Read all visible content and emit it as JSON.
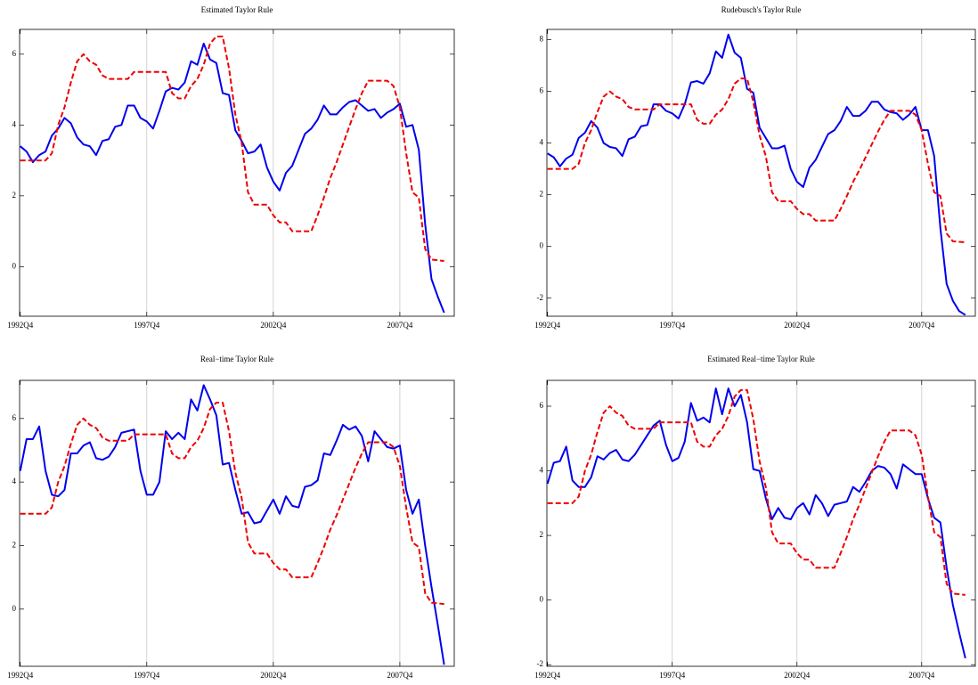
{
  "chart_data": [
    {
      "type": "line",
      "title": "Estimated Taylor Rule",
      "categories": [
        "1992Q4",
        null,
        null,
        null,
        null,
        null,
        null,
        null,
        null,
        null,
        null,
        null,
        null,
        null,
        null,
        null,
        null,
        null,
        null,
        null,
        "1997Q4",
        null,
        null,
        null,
        null,
        null,
        null,
        null,
        null,
        null,
        null,
        null,
        null,
        null,
        null,
        null,
        null,
        null,
        null,
        null,
        "2002Q4",
        null,
        null,
        null,
        null,
        null,
        null,
        null,
        null,
        null,
        null,
        null,
        null,
        null,
        null,
        null,
        null,
        null,
        null,
        null,
        "2007Q4",
        null,
        null,
        null,
        null,
        null,
        null,
        null
      ],
      "ylim": [
        -1.4,
        6.7
      ],
      "yticks": [
        0,
        2,
        4,
        6
      ],
      "xgrid": true,
      "series": [
        {
          "color": "#0000ee",
          "dashed": false,
          "values": [
            3.4,
            3.25,
            2.95,
            3.15,
            3.25,
            3.7,
            3.9,
            4.2,
            4.05,
            3.65,
            3.45,
            3.4,
            3.15,
            3.55,
            3.6,
            3.95,
            4.0,
            4.55,
            4.55,
            4.2,
            4.1,
            3.9,
            4.4,
            4.95,
            5.05,
            5.0,
            5.2,
            5.8,
            5.7,
            6.3,
            5.85,
            5.75,
            4.9,
            4.85,
            3.85,
            3.55,
            3.2,
            3.25,
            3.45,
            2.8,
            2.4,
            2.15,
            2.65,
            2.85,
            3.3,
            3.75,
            3.9,
            4.15,
            4.55,
            4.3,
            4.3,
            4.5,
            4.65,
            4.7,
            4.55,
            4.4,
            4.45,
            4.2,
            4.35,
            4.45,
            4.6,
            3.95,
            4.0,
            3.3,
            1.2,
            -0.35,
            -0.85,
            -1.3
          ]
        },
        {
          "color": "#ee0000",
          "dashed": true,
          "values": [
            3.0,
            3.0,
            3.0,
            3.0,
            3.0,
            3.2,
            4.0,
            4.5,
            5.2,
            5.8,
            6.0,
            5.8,
            5.7,
            5.4,
            5.3,
            5.3,
            5.3,
            5.3,
            5.5,
            5.5,
            5.5,
            5.5,
            5.5,
            5.5,
            4.9,
            4.75,
            4.75,
            5.1,
            5.3,
            5.7,
            6.3,
            6.5,
            6.5,
            5.6,
            4.3,
            3.5,
            2.1,
            1.75,
            1.75,
            1.75,
            1.45,
            1.25,
            1.25,
            1.0,
            1.0,
            1.0,
            1.0,
            1.45,
            1.95,
            2.5,
            2.95,
            3.45,
            3.95,
            4.45,
            4.9,
            5.25,
            5.25,
            5.25,
            5.25,
            5.1,
            4.5,
            3.2,
            2.1,
            1.95,
            0.5,
            0.2,
            0.18,
            0.16
          ]
        }
      ]
    },
    {
      "type": "line",
      "title": "Rudebusch's Taylor Rule",
      "categories": [
        "1992Q4",
        null,
        null,
        null,
        null,
        null,
        null,
        null,
        null,
        null,
        null,
        null,
        null,
        null,
        null,
        null,
        null,
        null,
        null,
        null,
        "1997Q4",
        null,
        null,
        null,
        null,
        null,
        null,
        null,
        null,
        null,
        null,
        null,
        null,
        null,
        null,
        null,
        null,
        null,
        null,
        null,
        "2002Q4",
        null,
        null,
        null,
        null,
        null,
        null,
        null,
        null,
        null,
        null,
        null,
        null,
        null,
        null,
        null,
        null,
        null,
        null,
        null,
        "2007Q4",
        null,
        null,
        null,
        null,
        null,
        null,
        null
      ],
      "ylim": [
        -2.7,
        8.4
      ],
      "yticks": [
        -2,
        0,
        2,
        4,
        6,
        8
      ],
      "xgrid": true,
      "series": [
        {
          "color": "#0000ee",
          "dashed": false,
          "values": [
            3.6,
            3.45,
            3.1,
            3.4,
            3.55,
            4.2,
            4.4,
            4.85,
            4.6,
            4.0,
            3.85,
            3.8,
            3.5,
            4.15,
            4.25,
            4.65,
            4.7,
            5.5,
            5.5,
            5.25,
            5.15,
            4.95,
            5.5,
            6.35,
            6.4,
            6.3,
            6.7,
            7.55,
            7.3,
            8.2,
            7.5,
            7.3,
            6.1,
            5.95,
            4.6,
            4.2,
            3.8,
            3.8,
            3.9,
            3.0,
            2.5,
            2.3,
            3.05,
            3.35,
            3.85,
            4.35,
            4.5,
            4.85,
            5.4,
            5.05,
            5.05,
            5.25,
            5.6,
            5.6,
            5.3,
            5.2,
            5.15,
            4.9,
            5.1,
            5.4,
            4.5,
            4.5,
            3.5,
            0.7,
            -1.45,
            -2.1,
            -2.5,
            -2.65
          ]
        },
        {
          "color": "#ee0000",
          "dashed": true,
          "values": [
            3.0,
            3.0,
            3.0,
            3.0,
            3.0,
            3.2,
            4.0,
            4.5,
            5.2,
            5.8,
            6.0,
            5.8,
            5.7,
            5.4,
            5.3,
            5.3,
            5.3,
            5.3,
            5.5,
            5.5,
            5.5,
            5.5,
            5.5,
            5.5,
            4.9,
            4.75,
            4.75,
            5.1,
            5.3,
            5.7,
            6.3,
            6.5,
            6.5,
            5.6,
            4.3,
            3.5,
            2.1,
            1.75,
            1.75,
            1.75,
            1.45,
            1.25,
            1.25,
            1.0,
            1.0,
            1.0,
            1.0,
            1.45,
            1.95,
            2.5,
            2.95,
            3.45,
            3.95,
            4.45,
            4.9,
            5.25,
            5.25,
            5.25,
            5.25,
            5.1,
            4.5,
            3.2,
            2.1,
            1.95,
            0.5,
            0.2,
            0.18,
            0.16
          ]
        }
      ]
    },
    {
      "type": "line",
      "title": "Real−time Taylor Rule",
      "categories": [
        "1992Q4",
        null,
        null,
        null,
        null,
        null,
        null,
        null,
        null,
        null,
        null,
        null,
        null,
        null,
        null,
        null,
        null,
        null,
        null,
        null,
        "1997Q4",
        null,
        null,
        null,
        null,
        null,
        null,
        null,
        null,
        null,
        null,
        null,
        null,
        null,
        null,
        null,
        null,
        null,
        null,
        null,
        "2002Q4",
        null,
        null,
        null,
        null,
        null,
        null,
        null,
        null,
        null,
        null,
        null,
        null,
        null,
        null,
        null,
        null,
        null,
        null,
        null,
        "2007Q4",
        null,
        null,
        null,
        null,
        null,
        null,
        null
      ],
      "ylim": [
        -1.8,
        7.2
      ],
      "yticks": [
        0,
        2,
        4,
        6
      ],
      "xgrid": true,
      "series": [
        {
          "color": "#0000ee",
          "dashed": false,
          "values": [
            4.35,
            5.35,
            5.35,
            5.75,
            4.35,
            3.6,
            3.55,
            3.75,
            4.9,
            4.9,
            5.15,
            5.25,
            4.75,
            4.7,
            4.8,
            5.1,
            5.55,
            5.6,
            5.65,
            4.35,
            3.6,
            3.6,
            4.0,
            5.6,
            5.35,
            5.55,
            5.35,
            6.6,
            6.25,
            7.05,
            6.6,
            6.1,
            4.55,
            4.6,
            3.75,
            3.0,
            3.05,
            2.7,
            2.75,
            3.1,
            3.45,
            3.0,
            3.55,
            3.25,
            3.2,
            3.85,
            3.9,
            4.05,
            4.9,
            4.85,
            5.3,
            5.8,
            5.65,
            5.75,
            5.45,
            4.65,
            5.6,
            5.35,
            5.1,
            5.05,
            5.15,
            3.75,
            3.0,
            3.45,
            2.0,
            0.7,
            -0.5,
            -1.75
          ]
        },
        {
          "color": "#ee0000",
          "dashed": true,
          "values": [
            3.0,
            3.0,
            3.0,
            3.0,
            3.0,
            3.2,
            4.0,
            4.5,
            5.2,
            5.8,
            6.0,
            5.8,
            5.7,
            5.4,
            5.3,
            5.3,
            5.3,
            5.3,
            5.5,
            5.5,
            5.5,
            5.5,
            5.5,
            5.5,
            4.9,
            4.75,
            4.75,
            5.1,
            5.3,
            5.7,
            6.3,
            6.5,
            6.5,
            5.6,
            4.3,
            3.5,
            2.1,
            1.75,
            1.75,
            1.75,
            1.45,
            1.25,
            1.25,
            1.0,
            1.0,
            1.0,
            1.0,
            1.45,
            1.95,
            2.5,
            2.95,
            3.45,
            3.95,
            4.45,
            4.9,
            5.25,
            5.25,
            5.25,
            5.25,
            5.1,
            4.5,
            3.2,
            2.1,
            1.95,
            0.5,
            0.2,
            0.18,
            0.16
          ]
        }
      ]
    },
    {
      "type": "line",
      "title": "Estimated Real−time Taylor Rule",
      "categories": [
        "1992Q4",
        null,
        null,
        null,
        null,
        null,
        null,
        null,
        null,
        null,
        null,
        null,
        null,
        null,
        null,
        null,
        null,
        null,
        null,
        null,
        "1997Q4",
        null,
        null,
        null,
        null,
        null,
        null,
        null,
        null,
        null,
        null,
        null,
        null,
        null,
        null,
        null,
        null,
        null,
        null,
        null,
        "2002Q4",
        null,
        null,
        null,
        null,
        null,
        null,
        null,
        null,
        null,
        null,
        null,
        null,
        null,
        null,
        null,
        null,
        null,
        null,
        null,
        "2007Q4",
        null,
        null,
        null,
        null,
        null,
        null,
        null
      ],
      "ylim": [
        -2.05,
        6.8
      ],
      "yticks": [
        -2,
        0,
        2,
        4,
        6
      ],
      "xgrid": true,
      "series": [
        {
          "color": "#0000ee",
          "dashed": false,
          "values": [
            3.6,
            4.25,
            4.3,
            4.75,
            3.7,
            3.5,
            3.5,
            3.8,
            4.45,
            4.35,
            4.55,
            4.65,
            4.35,
            4.3,
            4.5,
            4.8,
            5.1,
            5.4,
            5.55,
            4.8,
            4.3,
            4.4,
            4.9,
            6.1,
            5.55,
            5.65,
            5.5,
            6.55,
            5.75,
            6.55,
            6.0,
            6.35,
            5.5,
            4.05,
            4.0,
            3.15,
            2.5,
            2.85,
            2.55,
            2.5,
            2.85,
            3.0,
            2.65,
            3.25,
            3.0,
            2.6,
            2.95,
            3.0,
            3.05,
            3.5,
            3.35,
            3.65,
            4.0,
            4.15,
            4.1,
            3.9,
            3.45,
            4.2,
            4.05,
            3.9,
            3.9,
            3.15,
            2.55,
            2.4,
            1.0,
            -0.15,
            -1.0,
            -1.8
          ]
        },
        {
          "color": "#ee0000",
          "dashed": true,
          "values": [
            3.0,
            3.0,
            3.0,
            3.0,
            3.0,
            3.2,
            4.0,
            4.5,
            5.2,
            5.8,
            6.0,
            5.8,
            5.7,
            5.4,
            5.3,
            5.3,
            5.3,
            5.3,
            5.5,
            5.5,
            5.5,
            5.5,
            5.5,
            5.5,
            4.9,
            4.75,
            4.75,
            5.1,
            5.3,
            5.7,
            6.3,
            6.5,
            6.5,
            5.6,
            4.3,
            3.5,
            2.1,
            1.75,
            1.75,
            1.75,
            1.45,
            1.25,
            1.25,
            1.0,
            1.0,
            1.0,
            1.0,
            1.45,
            1.95,
            2.5,
            2.95,
            3.45,
            3.95,
            4.45,
            4.9,
            5.25,
            5.25,
            5.25,
            5.25,
            5.1,
            4.5,
            3.2,
            2.1,
            1.95,
            0.5,
            0.2,
            0.18,
            0.16
          ]
        }
      ]
    }
  ]
}
